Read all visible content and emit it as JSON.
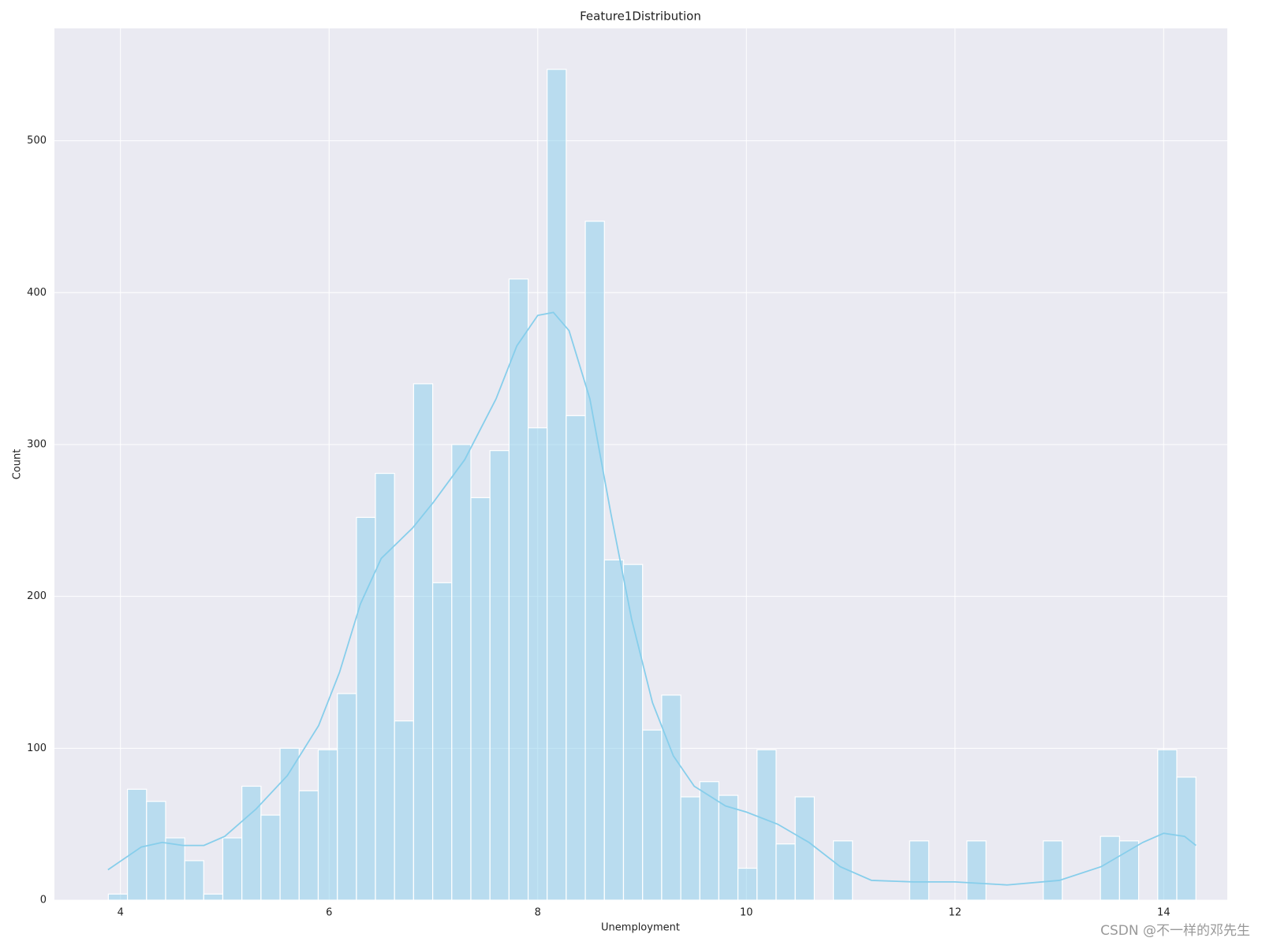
{
  "chart_data": {
    "type": "histogram",
    "title": "Feature1Distribution",
    "xlabel": "Unemployment",
    "ylabel": "Count",
    "bins": [
      3.884,
      4.067,
      4.25,
      4.433,
      4.616,
      4.798,
      4.981,
      5.164,
      5.347,
      5.53,
      5.713,
      5.896,
      6.079,
      6.262,
      6.444,
      6.627,
      6.81,
      6.993,
      7.176,
      7.359,
      7.542,
      7.725,
      7.908,
      8.09,
      8.273,
      8.456,
      8.639,
      8.822,
      9.005,
      9.188,
      9.371,
      9.554,
      9.736,
      9.919,
      10.102,
      10.285,
      10.468,
      10.651,
      10.834,
      11.017,
      11.2,
      11.382,
      11.565,
      11.748,
      11.931,
      12.114,
      12.297,
      12.48,
      12.663,
      12.846,
      13.028,
      13.211,
      13.394,
      13.577,
      13.76,
      13.943,
      14.126,
      14.309
    ],
    "values": [
      4,
      73,
      65,
      41,
      26,
      4,
      41,
      75,
      56,
      100,
      72,
      99,
      136,
      252,
      281,
      118,
      340,
      209,
      300,
      265,
      296,
      409,
      311,
      547,
      319,
      447,
      224,
      221,
      112,
      135,
      68,
      78,
      69,
      21,
      99,
      37,
      68,
      0,
      39,
      0,
      0,
      0,
      39,
      0,
      0,
      39,
      0,
      0,
      0,
      39,
      0,
      0,
      42,
      39,
      0,
      99,
      81
    ],
    "color": "#87ceeb",
    "kde": {
      "x": [
        3.88,
        4.2,
        4.4,
        4.6,
        4.8,
        5.0,
        5.3,
        5.6,
        5.9,
        6.1,
        6.3,
        6.5,
        6.8,
        7.0,
        7.3,
        7.6,
        7.8,
        8.0,
        8.15,
        8.3,
        8.5,
        8.7,
        8.9,
        9.1,
        9.3,
        9.5,
        9.8,
        10.0,
        10.3,
        10.6,
        10.9,
        11.2,
        11.6,
        12.0,
        12.5,
        13.0,
        13.4,
        13.8,
        14.0,
        14.2,
        14.31
      ],
      "values": [
        20,
        35,
        38,
        36,
        36,
        42,
        60,
        82,
        115,
        150,
        195,
        225,
        245,
        262,
        290,
        330,
        365,
        385,
        387,
        375,
        330,
        255,
        185,
        130,
        95,
        75,
        62,
        58,
        50,
        38,
        22,
        13,
        12,
        12,
        10,
        13,
        22,
        38,
        44,
        42,
        36
      ]
    },
    "xlim": [
      3.367,
      14.61
    ],
    "ylim": [
      0,
      574
    ],
    "xticks": [
      4,
      6,
      8,
      10,
      12,
      14
    ],
    "yticks": [
      0,
      100,
      200,
      300,
      400,
      500
    ],
    "grid": true,
    "watermark": "CSDN @不一样的邓先生"
  }
}
